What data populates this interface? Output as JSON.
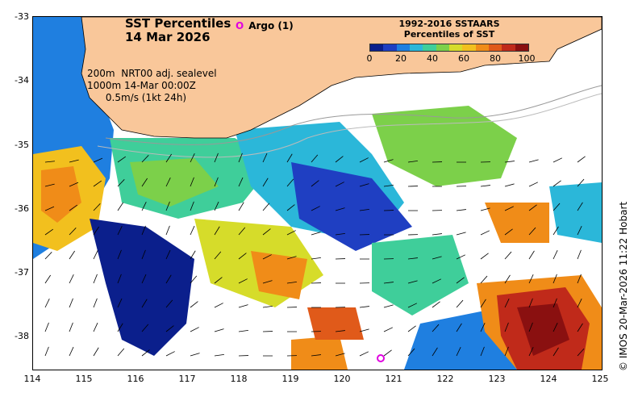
{
  "title": {
    "line1": "SST Percentiles",
    "line2": "14 Mar 2026"
  },
  "argo": {
    "label": "Argo (1)",
    "symbol": "O"
  },
  "legend": {
    "title_line1": "1992-2016 SSTAARS",
    "title_line2": "Percentiles of SST",
    "ticks": [
      "0",
      "20",
      "40",
      "60",
      "80",
      "100"
    ],
    "colors": [
      "#0b1f8c",
      "#1f3fc2",
      "#1f7fe0",
      "#2bb7d9",
      "#3fce9a",
      "#7cd04a",
      "#d6dc2a",
      "#f2c01e",
      "#f08c18",
      "#e05a1a",
      "#c02a1a",
      "#8a1010"
    ]
  },
  "info": {
    "line1": "200m  NRT00 adj. sealevel",
    "line2": "1000m 14-Mar 00:00Z",
    "line3": "      0.5m/s (1kt 24h)"
  },
  "axes": {
    "y_ticks": [
      "-33",
      "-34",
      "-35",
      "-36",
      "-37",
      "-38"
    ],
    "x_ticks": [
      "114",
      "115",
      "116",
      "117",
      "118",
      "119",
      "120",
      "121",
      "122",
      "123",
      "124",
      "125"
    ]
  },
  "credit": "© IMOS 20-Mar-2026 11:22 Hobart",
  "colors": {
    "land": "#f9c79a",
    "frame": "#000000",
    "argo": "#e000e0"
  }
}
